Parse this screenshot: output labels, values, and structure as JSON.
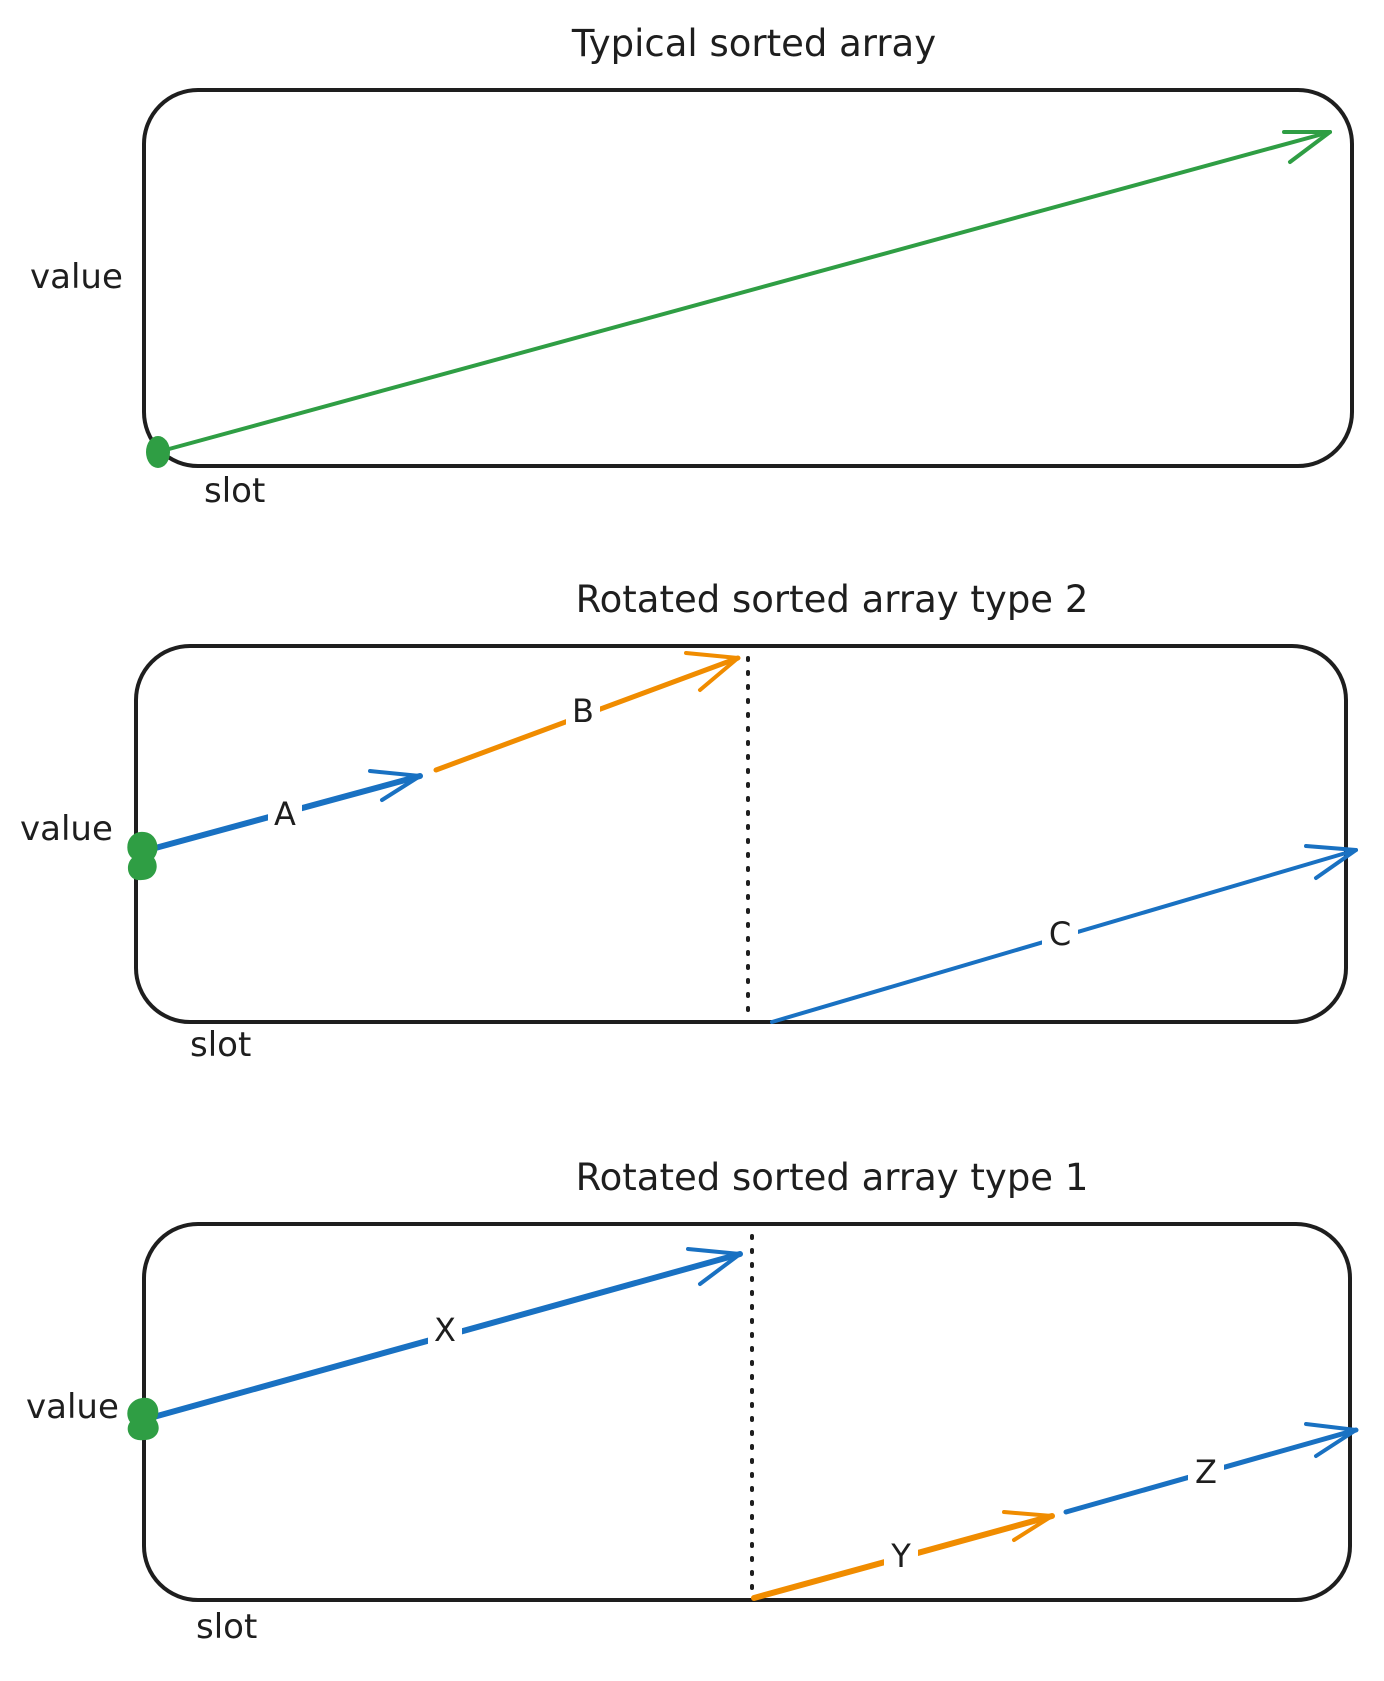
{
  "colors": {
    "ink": "#1e1e1e",
    "green": "#2f9e44",
    "blue": "#1971c2",
    "orange": "#f08c00",
    "background": "#ffffff"
  },
  "panels": [
    {
      "id": "typical",
      "title": "Typical sorted array",
      "y_label": "value",
      "x_label": "slot",
      "segments": [
        {
          "label": "",
          "color": "green"
        }
      ]
    },
    {
      "id": "rotated-type-2",
      "title": "Rotated sorted array type 2",
      "y_label": "value",
      "x_label": "slot",
      "segments": [
        {
          "label": "A",
          "color": "blue"
        },
        {
          "label": "B",
          "color": "orange"
        },
        {
          "label": "C",
          "color": "blue"
        }
      ]
    },
    {
      "id": "rotated-type-1",
      "title": "Rotated sorted array type 1",
      "y_label": "value",
      "x_label": "slot",
      "segments": [
        {
          "label": "X",
          "color": "blue"
        },
        {
          "label": "Y",
          "color": "orange"
        },
        {
          "label": "Z",
          "color": "blue"
        }
      ]
    }
  ]
}
